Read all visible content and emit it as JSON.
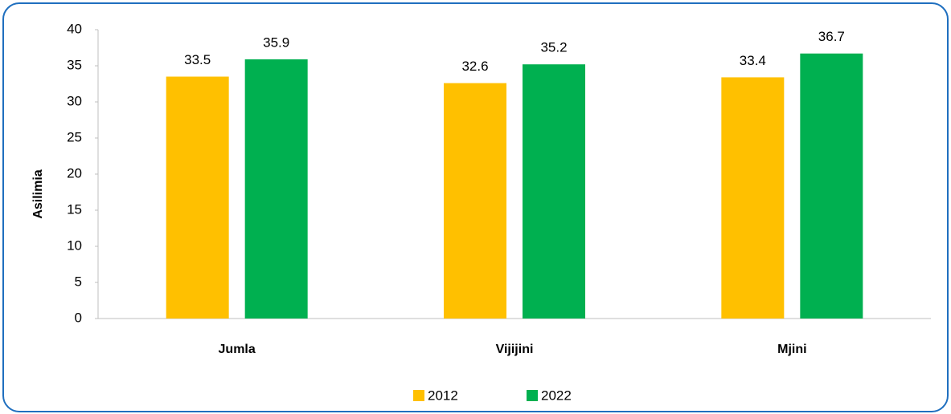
{
  "chart_data": {
    "type": "bar",
    "y_label": "Asilimia",
    "categories": [
      "Jumla",
      "Vijijini",
      "Mjini"
    ],
    "series": [
      {
        "name": "2012",
        "color": "#FFC000",
        "values": [
          33.5,
          32.6,
          33.4
        ]
      },
      {
        "name": "2022",
        "color": "#00B050",
        "values": [
          35.9,
          35.2,
          36.7
        ]
      }
    ],
    "ylim": [
      0,
      40
    ],
    "yticks": [
      0,
      5,
      10,
      15,
      20,
      25,
      30,
      35,
      40
    ],
    "grid": false,
    "legend": "bottom"
  }
}
